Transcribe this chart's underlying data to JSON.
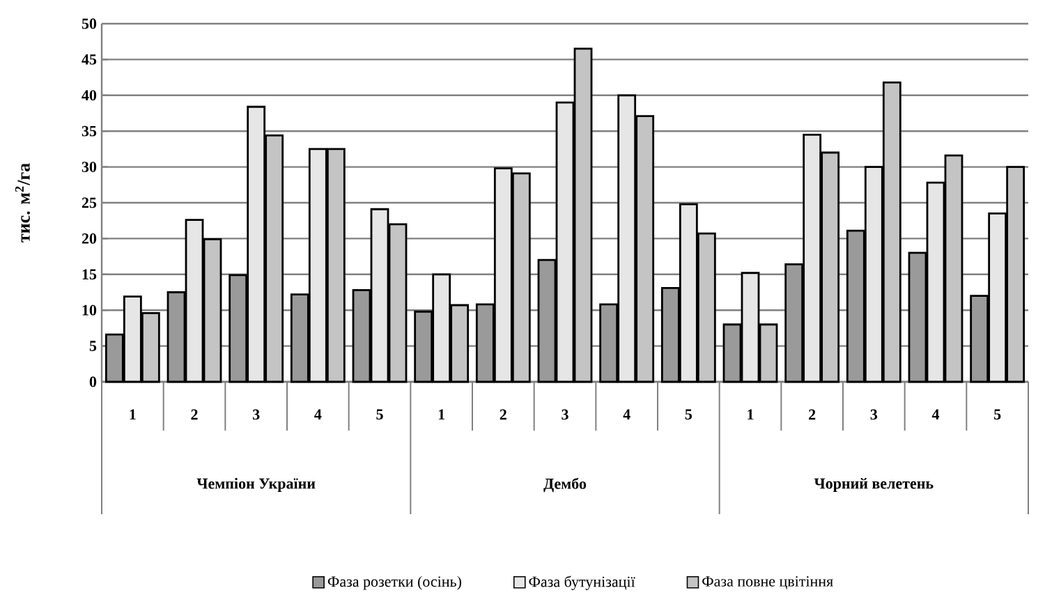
{
  "chart_data": {
    "type": "bar",
    "ylabel": "тис. м$^{2}$/га",
    "categories": [
      "1",
      "2",
      "3",
      "4",
      "5",
      "1",
      "2",
      "3",
      "4",
      "5",
      "1",
      "2",
      "3",
      "4",
      "5"
    ],
    "annotations": [
      "Чемпіон України",
      "Дембо",
      "Чорний велетень"
    ],
    "series": [
      {
        "name": "Фаза розетки (осінь)",
        "color": "#9a9a9a",
        "values": [
          6.6,
          12.5,
          14.9,
          12.2,
          12.8,
          9.8,
          10.8,
          17.0,
          10.8,
          13.1,
          8.0,
          16.4,
          21.1,
          18.0,
          12.0
        ]
      },
      {
        "name": "Фаза бутунізації",
        "color": "#e6e6e6",
        "values": [
          11.9,
          22.6,
          38.4,
          32.5,
          24.1,
          15.0,
          29.8,
          39.0,
          40.0,
          24.8,
          15.2,
          34.5,
          30.0,
          27.8,
          23.5
        ]
      },
      {
        "name": "Фаза повне цвітіння",
        "color": "#c4c4c4",
        "values": [
          9.6,
          19.9,
          34.4,
          32.5,
          22.0,
          10.7,
          29.1,
          46.5,
          37.1,
          20.7,
          8.0,
          32.0,
          41.8,
          31.6,
          30.0
        ]
      }
    ],
    "ylim": [
      0,
      50
    ],
    "yticks": [
      0,
      5,
      10,
      15,
      20,
      25,
      30,
      35,
      40,
      45,
      50
    ],
    "grid": "y",
    "legend": "bottom"
  }
}
